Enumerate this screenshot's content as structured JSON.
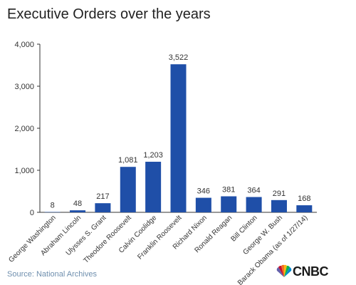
{
  "chart_data": {
    "type": "bar",
    "title": "Executive Orders over the years",
    "categories": [
      "George Washington",
      "Abraham Lincoln",
      "Ulysses S. Grant",
      "Theodore Roosevelt",
      "Calvin Coolidge",
      "Franklin Roosevelt",
      "Richard Nixon",
      "Ronald Reagan",
      "Bill Clinton",
      "George W. Bush",
      "Barack Obama (as of 1/27/14)"
    ],
    "values": [
      8,
      48,
      217,
      1081,
      1203,
      3522,
      346,
      381,
      364,
      291,
      168
    ],
    "value_labels": [
      "8",
      "48",
      "217",
      "1,081",
      "1,203",
      "3,522",
      "346",
      "381",
      "364",
      "291",
      "168"
    ],
    "ylim": [
      0,
      4000
    ],
    "yticks": [
      0,
      1000,
      2000,
      3000,
      4000
    ],
    "ytick_labels": [
      "0",
      "1,000",
      "2,000",
      "3,000",
      "4,000"
    ],
    "xlabel": "",
    "ylabel": "",
    "grid": false,
    "bar_color": "#1f4fa8",
    "axis_color": "#333333"
  },
  "footer": {
    "source": "Source: National Archives",
    "brand": "CNBC"
  }
}
